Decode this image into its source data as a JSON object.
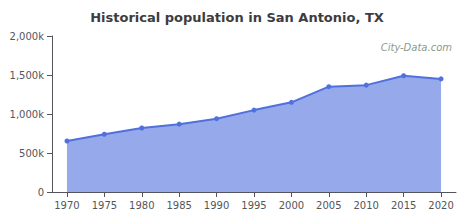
{
  "chart_data": {
    "type": "area",
    "title": "Historical population in San Antonio, TX",
    "x": [
      1970,
      1975,
      1980,
      1985,
      1990,
      1995,
      2000,
      2005,
      2010,
      2015,
      2020
    ],
    "values": [
      654000,
      740000,
      820000,
      870000,
      940000,
      1050000,
      1150000,
      1350000,
      1370000,
      1490000,
      1450000
    ],
    "xlim": [
      1968,
      2022
    ],
    "xticks": [
      1970,
      1975,
      1980,
      1985,
      1990,
      1995,
      2000,
      2005,
      2010,
      2015,
      2020
    ],
    "ylim": [
      0,
      2000000
    ],
    "yticks": [
      0,
      {
        "value": 500000,
        "label": "500k"
      },
      {
        "value": 1000000,
        "label": "1,000k"
      },
      {
        "value": 1500000,
        "label": "1,500k"
      },
      {
        "value": 2000000,
        "label": "2,000k"
      }
    ],
    "marker": "circle",
    "grid": false,
    "annotations": [
      "City-Data.com"
    ]
  }
}
